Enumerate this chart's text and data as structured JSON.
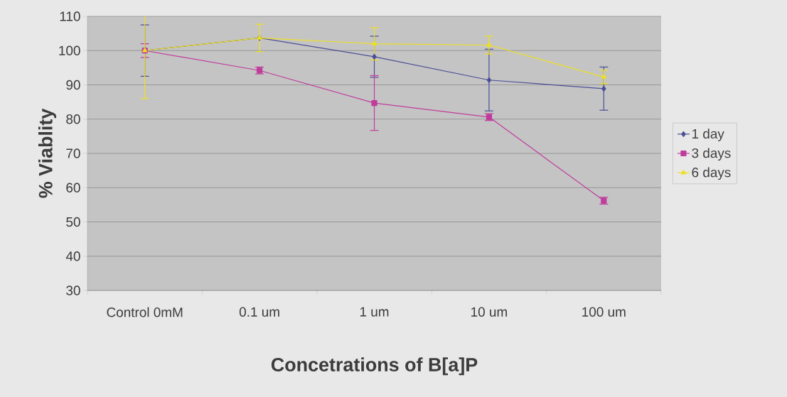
{
  "chart_data": {
    "type": "line",
    "xlabel": "Concetrations of B[a]P",
    "ylabel": "% Viablity",
    "categories": [
      "Control 0mM",
      "0.1 um",
      "1 um",
      "10 um",
      "100 um"
    ],
    "series": [
      {
        "name": "1 day",
        "color": "#4b4f96",
        "marker": "diamond",
        "values": [
          100,
          103.7,
          98.2,
          91.4,
          88.9
        ],
        "errors": [
          7.5,
          null,
          6,
          9,
          6.3
        ]
      },
      {
        "name": "3 days",
        "color": "#c03c9c",
        "marker": "square",
        "values": [
          100,
          94.2,
          84.7,
          80.6,
          56.2
        ],
        "errors": [
          2,
          1,
          8,
          1,
          1
        ]
      },
      {
        "name": "6 days",
        "color": "#eee020",
        "marker": "triangle",
        "values": [
          100,
          103.7,
          102,
          101.6,
          92.3
        ],
        "errors": [
          14,
          4,
          4.7,
          2.6,
          2
        ]
      }
    ],
    "ylim": [
      30,
      110
    ],
    "yticks": [
      30,
      40,
      50,
      60,
      70,
      80,
      90,
      100,
      110
    ],
    "grid": "y",
    "legend": "right",
    "line_style": "solid"
  }
}
